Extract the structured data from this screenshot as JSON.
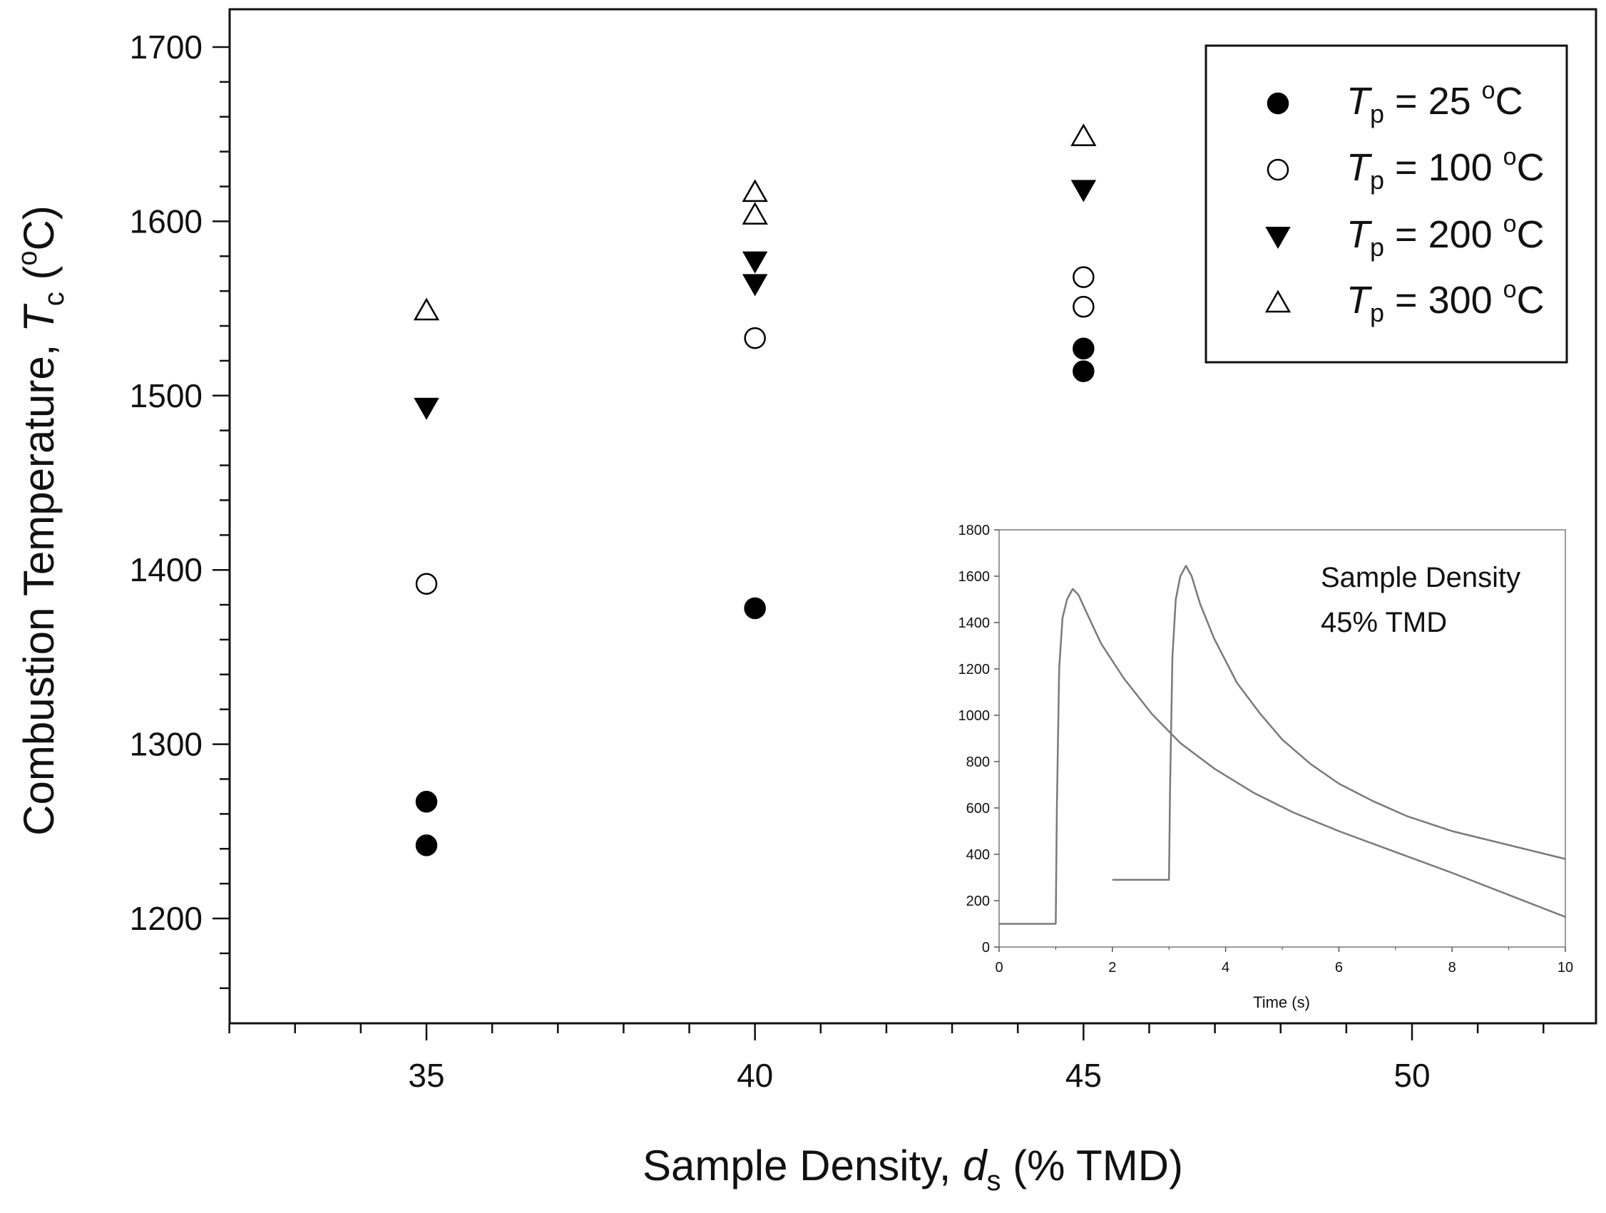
{
  "chart_data": [
    {
      "type": "scatter",
      "title": "",
      "xlabel": {
        "pre": "Sample Density, ",
        "var": "d",
        "sub": "s",
        "post": " (% TMD)"
      },
      "ylabel": {
        "pre": "Combustion Temperature, ",
        "var": "T",
        "sub": "c",
        "post": " (",
        "sup": "o",
        "post2": "C)"
      },
      "xlim": [
        32,
        52.5
      ],
      "ylim": [
        1140,
        1700
      ],
      "x_ticks": [
        35,
        40,
        45,
        50
      ],
      "y_ticks": [
        1200,
        1300,
        1400,
        1500,
        1600,
        1700
      ],
      "x_minor_step": 1,
      "y_minor_step": 20,
      "grid": false,
      "legend_position": "top-right",
      "series": [
        {
          "name": {
            "var": "T",
            "sub": "p",
            "value": " = 25 ",
            "sup": "o",
            "unit": "C"
          },
          "marker": "filled-circle",
          "color": "#000000",
          "points": [
            [
              35,
              1267
            ],
            [
              35,
              1242
            ],
            [
              40,
              1378
            ],
            [
              45,
              1527
            ],
            [
              45,
              1514
            ]
          ]
        },
        {
          "name": {
            "var": "T",
            "sub": "p",
            "value": " = 100 ",
            "sup": "o",
            "unit": "C"
          },
          "marker": "open-circle",
          "color": "#000000",
          "points": [
            [
              35,
              1392
            ],
            [
              40,
              1533
            ],
            [
              45,
              1568
            ],
            [
              45,
              1551
            ]
          ]
        },
        {
          "name": {
            "var": "T",
            "sub": "p",
            "value": " = 200 ",
            "sup": "o",
            "unit": "C"
          },
          "marker": "filled-triangle-down",
          "color": "#000000",
          "points": [
            [
              35,
              1493
            ],
            [
              40,
              1577
            ],
            [
              40,
              1564
            ],
            [
              45,
              1618
            ]
          ]
        },
        {
          "name": {
            "var": "T",
            "sub": "p",
            "value": " = 300 ",
            "sup": "o",
            "unit": "C"
          },
          "marker": "open-triangle-up",
          "color": "#000000",
          "points": [
            [
              35,
              1549
            ],
            [
              40,
              1617
            ],
            [
              40,
              1604
            ],
            [
              45,
              1649
            ]
          ]
        }
      ]
    },
    {
      "type": "line",
      "inset": true,
      "annotation": [
        "Sample Density",
        "45% TMD"
      ],
      "xlabel": "Time (s)",
      "ylabel": "",
      "xlim": [
        0,
        10
      ],
      "ylim": [
        0,
        1800
      ],
      "x_ticks": [
        0,
        2,
        4,
        6,
        8,
        10
      ],
      "y_ticks": [
        0,
        200,
        400,
        600,
        800,
        1000,
        1200,
        1400,
        1600,
        1800
      ],
      "line_color": "#7a7a7a",
      "series": [
        {
          "points": [
            [
              0,
              100
            ],
            [
              1,
              100
            ],
            [
              1.02,
              600
            ],
            [
              1.06,
              1200
            ],
            [
              1.12,
              1420
            ],
            [
              1.2,
              1500
            ],
            [
              1.3,
              1545
            ],
            [
              1.4,
              1520
            ],
            [
              1.55,
              1440
            ],
            [
              1.8,
              1310
            ],
            [
              2.2,
              1160
            ],
            [
              2.7,
              1005
            ],
            [
              3.2,
              880
            ],
            [
              3.8,
              770
            ],
            [
              4.5,
              665
            ],
            [
              5.2,
              580
            ],
            [
              6,
              500
            ],
            [
              7,
              410
            ],
            [
              8,
              320
            ],
            [
              9,
              225
            ],
            [
              10,
              130
            ]
          ]
        },
        {
          "points": [
            [
              2,
              290
            ],
            [
              3,
              290
            ],
            [
              3.02,
              700
            ],
            [
              3.06,
              1250
            ],
            [
              3.12,
              1500
            ],
            [
              3.2,
              1600
            ],
            [
              3.3,
              1645
            ],
            [
              3.4,
              1600
            ],
            [
              3.55,
              1480
            ],
            [
              3.8,
              1330
            ],
            [
              4.2,
              1140
            ],
            [
              4.6,
              1010
            ],
            [
              5,
              895
            ],
            [
              5.5,
              790
            ],
            [
              6,
              705
            ],
            [
              6.6,
              630
            ],
            [
              7.2,
              565
            ],
            [
              8,
              500
            ],
            [
              9,
              440
            ],
            [
              10,
              380
            ]
          ]
        }
      ]
    }
  ]
}
